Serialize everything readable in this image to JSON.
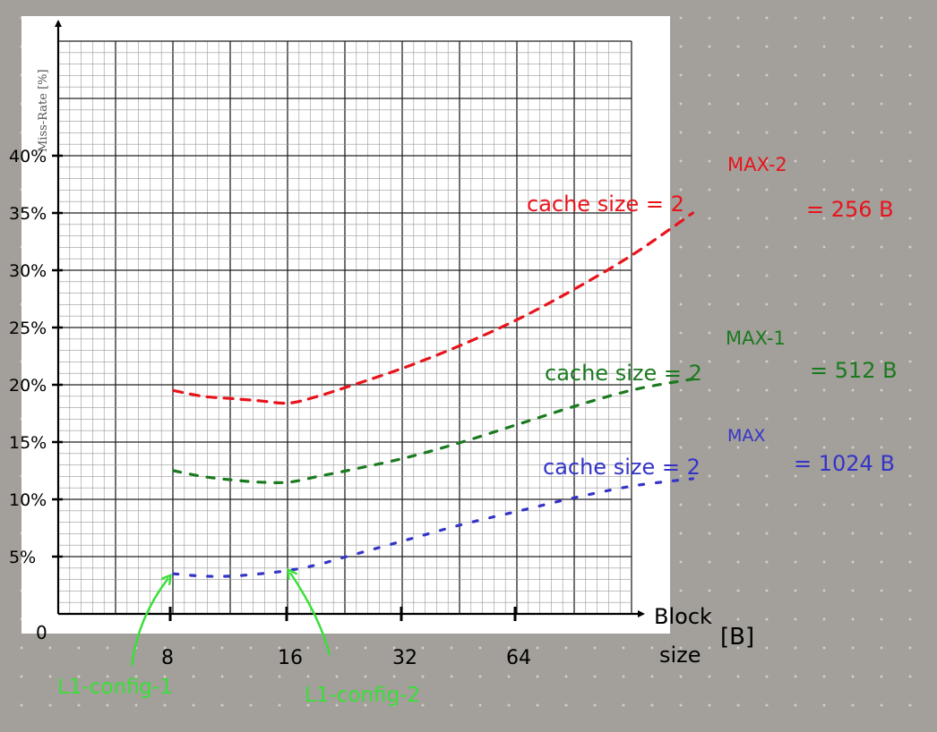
{
  "chart_data": {
    "type": "line",
    "ylabel": "Miss-Rate [%]",
    "xlabel": "Block size [B]",
    "xlabel_line1": "Block",
    "xlabel_line2": "size",
    "xlabel_unit": "[B]",
    "origin_label": "0",
    "x_ticks": [
      "8",
      "16",
      "32",
      "64"
    ],
    "y_ticks": [
      "5%",
      "10%",
      "15%",
      "20%",
      "25%",
      "30%",
      "35%",
      "40%"
    ],
    "x": [
      8,
      16,
      32,
      64
    ],
    "ylim": [
      0,
      50
    ],
    "grid": true,
    "series": [
      {
        "color": "#e8141c",
        "points": [
          [
            8,
            19.5
          ],
          [
            10,
            19.0
          ],
          [
            12,
            18.8
          ],
          [
            14,
            18.6
          ],
          [
            16,
            18.4
          ],
          [
            18,
            19.0
          ],
          [
            20,
            19.8
          ],
          [
            24,
            21.5
          ],
          [
            28,
            23.5
          ],
          [
            32,
            25.8
          ],
          [
            36,
            28.5
          ],
          [
            40,
            31.5
          ],
          [
            44,
            35.0
          ]
        ],
        "label_prefix": "cache size = 2",
        "label_exponent": "MAX-2",
        "label_value": "= 256 B"
      },
      {
        "color": "#1a7a1e",
        "points": [
          [
            8,
            12.5
          ],
          [
            10,
            12.0
          ],
          [
            12,
            11.7
          ],
          [
            14,
            11.5
          ],
          [
            16,
            11.5
          ],
          [
            18,
            12.0
          ],
          [
            20,
            12.5
          ],
          [
            24,
            13.6
          ],
          [
            28,
            15.0
          ],
          [
            32,
            16.6
          ],
          [
            36,
            18.2
          ],
          [
            40,
            19.6
          ],
          [
            44,
            20.5
          ]
        ],
        "label_prefix": "cache size = 2",
        "label_exponent": "MAX-1",
        "label_value": "= 512 B"
      },
      {
        "color": "#3434c8",
        "points": [
          [
            8,
            3.5
          ],
          [
            10,
            3.3
          ],
          [
            12,
            3.3
          ],
          [
            14,
            3.5
          ],
          [
            16,
            3.8
          ],
          [
            18,
            4.3
          ],
          [
            20,
            5.0
          ],
          [
            24,
            6.4
          ],
          [
            28,
            7.8
          ],
          [
            32,
            9.0
          ],
          [
            36,
            10.2
          ],
          [
            40,
            11.2
          ],
          [
            44,
            11.8
          ]
        ],
        "label_prefix": "cache size = 2",
        "label_exponent": "MAX",
        "label_value": "= 1024 B"
      }
    ],
    "annotations": [
      {
        "text": "L1-config-1",
        "x": 8,
        "y": 3.5,
        "color": "#38e038"
      },
      {
        "text": "L1-config-2",
        "x": 16,
        "y": 3.8,
        "color": "#38e038"
      }
    ]
  }
}
